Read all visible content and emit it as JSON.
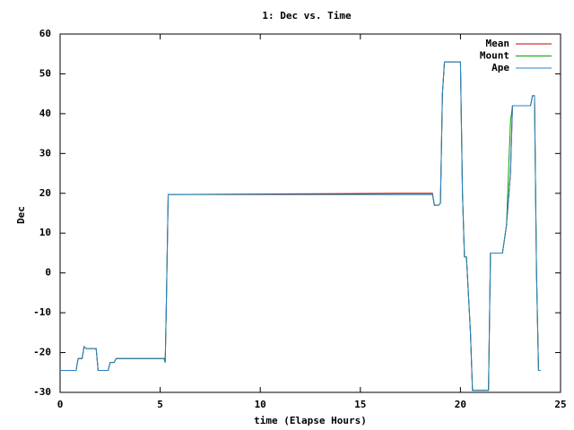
{
  "chart_data": {
    "type": "line",
    "title": "1: Dec vs. Time",
    "x_label": "time (Elapse Hours)",
    "y_label": "Dec",
    "x": [
      0,
      0.2,
      0.8,
      0.9,
      1.1,
      1.2,
      1.3,
      1.8,
      1.9,
      2.4,
      2.5,
      2.7,
      2.8,
      5.2,
      5.25,
      5.3,
      5.4,
      17.0,
      18.6,
      18.7,
      18.9,
      19.0,
      19.1,
      19.2,
      20.0,
      20.1,
      20.2,
      20.3,
      20.5,
      20.6,
      21.3,
      21.4,
      21.5,
      22.1,
      22.3,
      22.5,
      22.6,
      23.5,
      23.6,
      23.7,
      23.8,
      23.9,
      24.0
    ],
    "series": [
      {
        "name": "Mean",
        "color": "#cc0000",
        "values": [
          -24.5,
          -24.5,
          -24.5,
          -21.5,
          -21.5,
          -18.5,
          -19,
          -19,
          -24.5,
          -24.5,
          -22.5,
          -22.5,
          -21.5,
          -21.5,
          -22.5,
          -10,
          19.7,
          20,
          20,
          17,
          17,
          17.5,
          45,
          53,
          53,
          20,
          4,
          4,
          -15,
          -29.5,
          -29.5,
          -29.5,
          5,
          5,
          12,
          25,
          42,
          42,
          44.5,
          44.5,
          0,
          -24.5,
          -24.5
        ]
      },
      {
        "name": "Mount",
        "color": "#00a000",
        "values": [
          -24.5,
          -24.5,
          -24.5,
          -21.5,
          -21.5,
          -18.5,
          -19,
          -19,
          -24.5,
          -24.5,
          -22.5,
          -22.5,
          -21.5,
          -21.5,
          -22.5,
          -10,
          19.7,
          19.7,
          19.7,
          17,
          17,
          17.5,
          45,
          53,
          53,
          20,
          4,
          4,
          -15,
          -29.5,
          -29.5,
          -29.5,
          5,
          5,
          12,
          38,
          42,
          42,
          44.5,
          44.5,
          0,
          -24.5,
          -24.5
        ]
      },
      {
        "name": "Ape",
        "color": "#2a7fc8",
        "values": [
          -24.5,
          -24.5,
          -24.5,
          -21.5,
          -21.5,
          -18.5,
          -19,
          -19,
          -24.5,
          -24.5,
          -22.5,
          -22.5,
          -21.5,
          -21.5,
          -22.5,
          -10,
          19.7,
          19.7,
          19.7,
          17,
          17,
          17.5,
          45,
          53,
          53,
          20,
          4,
          4,
          -15,
          -29.5,
          -29.5,
          -29.5,
          5,
          5,
          12,
          25,
          42,
          42,
          44.5,
          44.5,
          0,
          -24.5,
          -24.5
        ]
      }
    ],
    "xlim": [
      0,
      25
    ],
    "xticks": [
      0,
      5,
      10,
      15,
      20,
      25
    ],
    "ylim": [
      -30,
      60
    ],
    "yticks": [
      -30,
      -20,
      -10,
      0,
      10,
      20,
      30,
      40,
      50,
      60
    ],
    "legend": "top-right"
  }
}
